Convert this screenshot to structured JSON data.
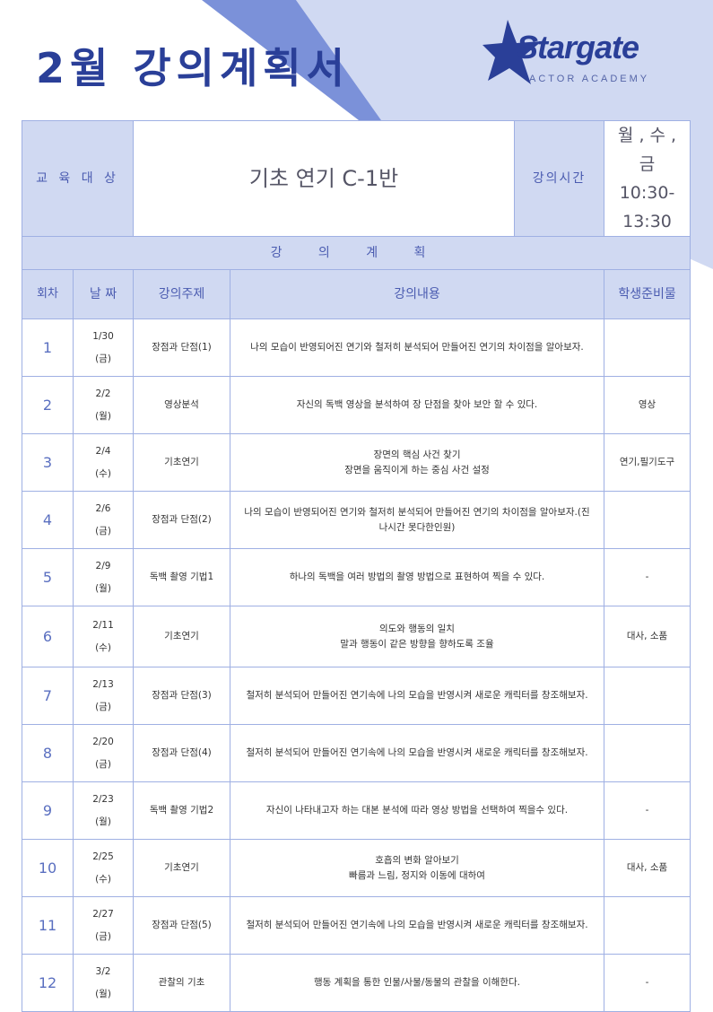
{
  "title": "2월 강의계획서",
  "logo": {
    "word": "Stargate",
    "sub": "ACTOR ACADEMY"
  },
  "colors": {
    "accent": "#2a3f98",
    "header_bg": "#d0d9f2",
    "border": "#9fb0e3"
  },
  "info": {
    "target_label": "교 육 대 상",
    "target_value": "기초 연기 C-1반",
    "time_label": "강의시간",
    "days": "월 , 수 , 금",
    "time": "10:30-13:30"
  },
  "plan_label": "강 의 계 획",
  "columns": [
    "회차",
    "날 짜",
    "강의주제",
    "강의내용",
    "학생준비물"
  ],
  "rows": [
    {
      "no": "1",
      "date": "1/30",
      "day": "(금)",
      "topic": "장점과 단점(1)",
      "content": "나의 모습이 반영되어진 연기와 철저히 분석되어 만들어진 연기의 차이점을 알아보자.",
      "prep": ""
    },
    {
      "no": "2",
      "date": "2/2",
      "day": "(월)",
      "topic": "영상분석",
      "content": "자신의 독백 영상을 분석하여 장 단점을 찾아 보안 할 수 있다.",
      "prep": "영상"
    },
    {
      "no": "3",
      "date": "2/4",
      "day": "(수)",
      "topic": "기초연기",
      "content": "장면의 핵심 사건 찾기\n장면을 움직이게 하는 중심 사건 설정",
      "prep": "연기,필기도구"
    },
    {
      "no": "4",
      "date": "2/6",
      "day": "(금)",
      "topic": "장점과 단점(2)",
      "content": "나의 모습이 반영되어진 연기와 철저히 분석되어 만들어진 연기의 차이점을 알아보자.(진나시간 못다한인원)",
      "prep": ""
    },
    {
      "no": "5",
      "date": "2/9",
      "day": "(월)",
      "topic": "독백 촬영 기법1",
      "content": "하나의 독백을 여러 방법의 촬영 방법으로 표현하여 찍을 수 있다.",
      "prep": "-"
    },
    {
      "no": "6",
      "date": "2/11",
      "day": "(수)",
      "topic": "기초연기",
      "content": "의도와 행동의 일치\n말과 행동이 같은 방향을 향하도록 조율",
      "prep": "대사, 소품"
    },
    {
      "no": "7",
      "date": "2/13",
      "day": "(금)",
      "topic": "장점과 단점(3)",
      "content": "철저히 분석되어 만들어진 연기속에 나의 모습을 반영시켜 새로운 캐릭터를 창조해보자.",
      "prep": ""
    },
    {
      "no": "8",
      "date": "2/20",
      "day": "(금)",
      "topic": "장점과 단점(4)",
      "content": "철저히 분석되어 만들어진 연기속에 나의 모습을 반영시켜 새로운 캐릭터를 창조해보자.",
      "prep": ""
    },
    {
      "no": "9",
      "date": "2/23",
      "day": "(월)",
      "topic": "독백 촬영 기법2",
      "content": "자신이 나타내고자 하는 대본 분석에 따라 영상 방법을 선택하여 찍을수 있다.",
      "prep": "-"
    },
    {
      "no": "10",
      "date": "2/25",
      "day": "(수)",
      "topic": "기초연기",
      "content": "호흡의 변화 알아보기\n빠름과 느림, 정지와 이동에 대하여",
      "prep": "대사, 소품"
    },
    {
      "no": "11",
      "date": "2/27",
      "day": "(금)",
      "topic": "장점과 단점(5)",
      "content": "철저히 분석되어 만들어진 연기속에 나의 모습을 반영시켜 새로운 캐릭터를 창조해보자.",
      "prep": ""
    },
    {
      "no": "12",
      "date": "3/2",
      "day": "(월)",
      "topic": "관찰의 기초",
      "content": "행동 계획을 통한 인물/사물/동물의 관찰을 이해한다.",
      "prep": "-"
    }
  ]
}
